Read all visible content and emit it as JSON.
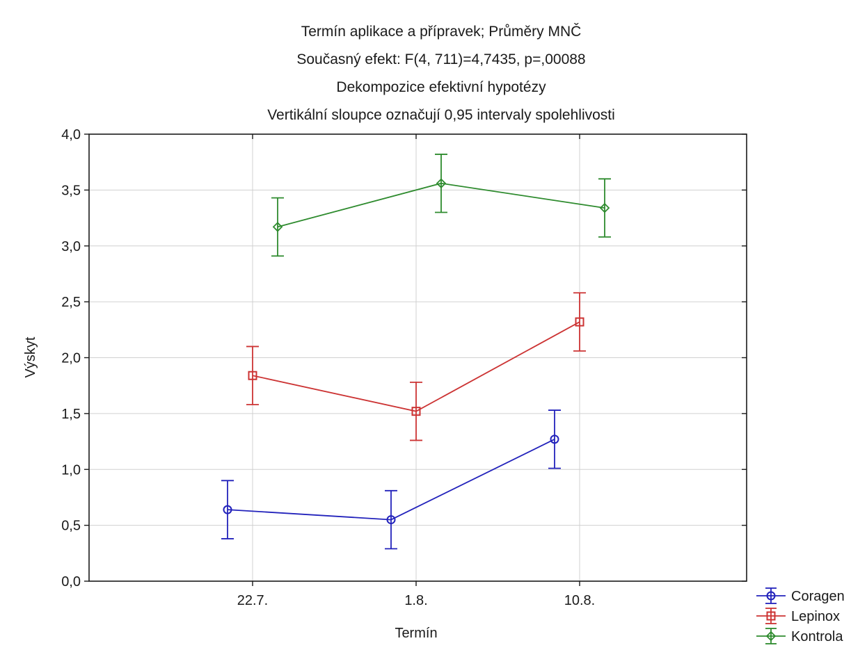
{
  "chart_data": {
    "type": "line",
    "title_lines": [
      "Termín aplikace a přípravek; Průměry MNČ",
      "Současný efekt: F(4, 711)=4,7435, p=,00088",
      "Dekompozice efektivní hypotézy",
      "Vertikální sloupce označují 0,95 intervaly spolehlivosti"
    ],
    "xlabel": "Termín",
    "ylabel": "Výskyt",
    "categories": [
      "22.7.",
      "1.8.",
      "10.8."
    ],
    "ylim": [
      0,
      4
    ],
    "yticks": [
      "0,0",
      "0,5",
      "1,0",
      "1,5",
      "2,0",
      "2,5",
      "3,0",
      "3,5",
      "4,0"
    ],
    "grid": true,
    "legend_position": "bottom-right",
    "series": [
      {
        "name": "Coragen",
        "color": "#2222bb",
        "marker": "circle",
        "values": [
          0.64,
          0.55,
          1.27
        ],
        "ci_low": [
          0.38,
          0.29,
          1.01
        ],
        "ci_high": [
          0.9,
          0.81,
          1.53
        ]
      },
      {
        "name": "Lepinox",
        "color": "#cc3333",
        "marker": "square",
        "values": [
          1.84,
          1.52,
          2.32
        ],
        "ci_low": [
          1.58,
          1.26,
          2.06
        ],
        "ci_high": [
          2.1,
          1.78,
          2.58
        ]
      },
      {
        "name": "Kontrola",
        "color": "#2e8b2e",
        "marker": "diamond",
        "values": [
          3.17,
          3.56,
          3.34
        ],
        "ci_low": [
          2.91,
          3.3,
          3.08
        ],
        "ci_high": [
          3.43,
          3.82,
          3.6
        ]
      }
    ]
  }
}
